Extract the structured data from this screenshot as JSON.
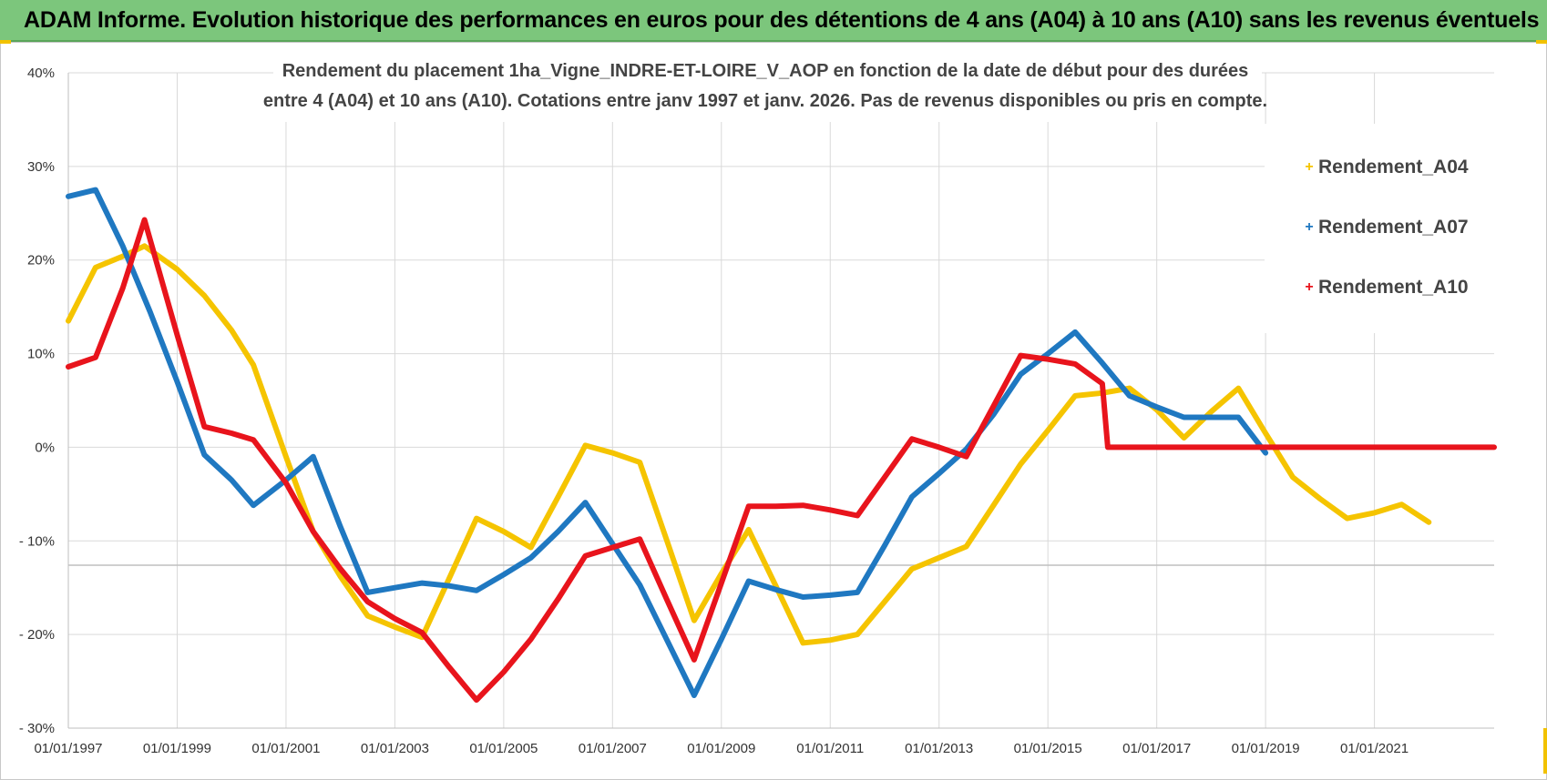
{
  "header": {
    "title": "ADAM Informe. Evolution historique des performances en euros pour des détentions de 4 ans (A04) à 10 ans (A10) sans les revenus éventuels"
  },
  "colors": {
    "banner": "#7cc67c",
    "A04": "#f5c400",
    "A07": "#1f78c1",
    "A10": "#e8141c",
    "grid": "#d9d9d9"
  },
  "chart_data": {
    "type": "line",
    "title_line1": "Rendement du placement 1ha_Vigne_INDRE-ET-LOIRE_V_AOP en fonction de la date de début pour des durées",
    "title_line2": "entre 4 (A04) et 10 ans (A10).  Cotations entre janv 1997 et janv. 2026. Pas de revenus disponibles ou pris en compte.",
    "xlabel": "",
    "ylabel": "",
    "xlim": [
      1997,
      2023.2
    ],
    "ylim": [
      -30,
      40
    ],
    "yticks": [
      40,
      30,
      20,
      10,
      0,
      -10,
      -20,
      -30
    ],
    "ytick_labels": [
      "40%",
      "30%",
      "20%",
      "10%",
      "0%",
      "- 10%",
      "- 20%",
      "- 30%"
    ],
    "xtick_labels": [
      "01/01/1997",
      "01/01/1999",
      "01/01/2001",
      "01/01/2003",
      "01/01/2005",
      "01/01/2007",
      "01/01/2009",
      "01/01/2011",
      "01/01/2013",
      "01/01/2015",
      "01/01/2017",
      "01/01/2019",
      "01/01/2021"
    ],
    "xtick_years": [
      1997,
      1999,
      2001,
      2003,
      2005,
      2007,
      2009,
      2011,
      2013,
      2015,
      2017,
      2019,
      2021
    ],
    "grid": true,
    "legend_position": "top-right",
    "series": [
      {
        "name": "Rendement_A04",
        "x": [
          1997.0,
          1997.5,
          1998.0,
          1998.4,
          1999.0,
          1999.5,
          2000.0,
          2000.4,
          2001.0,
          2001.5,
          2002.0,
          2002.5,
          2003.0,
          2003.5,
          2004.0,
          2004.5,
          2005.0,
          2005.5,
          2006.0,
          2006.5,
          2007.0,
          2007.5,
          2008.0,
          2008.5,
          2009.0,
          2009.5,
          2010.0,
          2010.5,
          2011.0,
          2011.5,
          2012.0,
          2012.5,
          2013.0,
          2013.5,
          2014.0,
          2014.5,
          2015.0,
          2015.5,
          2016.0,
          2016.5,
          2017.0,
          2017.5,
          2018.0,
          2018.5,
          2019.0,
          2019.5,
          2020.0,
          2020.5,
          2021.0,
          2021.5,
          2022.0
        ],
        "values": [
          13.5,
          19.2,
          20.4,
          21.5,
          19.0,
          16.2,
          12.5,
          8.8,
          -1.0,
          -9.0,
          -13.8,
          -18.0,
          -19.2,
          -20.3,
          -14.0,
          -7.6,
          -9.0,
          -10.7,
          -5.3,
          0.2,
          -0.6,
          -1.6,
          -10.0,
          -18.5,
          -13.5,
          -8.8,
          -14.8,
          -20.9,
          -20.6,
          -20.0,
          -16.5,
          -13.0,
          -11.8,
          -10.6,
          -6.2,
          -1.8,
          1.8,
          5.5,
          5.8,
          6.3,
          4.0,
          1.0,
          3.8,
          6.3,
          1.5,
          -3.2,
          -5.5,
          -7.6,
          -7.0,
          -6.1,
          -8.0
        ]
      },
      {
        "name": "Rendement_A07",
        "x": [
          1997.0,
          1997.5,
          1998.0,
          1998.5,
          1999.0,
          1999.5,
          2000.0,
          2000.4,
          2001.0,
          2001.5,
          2002.0,
          2002.5,
          2003.0,
          2003.5,
          2004.0,
          2004.5,
          2005.0,
          2005.5,
          2006.0,
          2006.5,
          2007.0,
          2007.5,
          2008.0,
          2008.5,
          2009.0,
          2009.5,
          2010.0,
          2010.5,
          2011.0,
          2011.5,
          2012.0,
          2012.5,
          2013.0,
          2013.5,
          2014.0,
          2014.5,
          2015.0,
          2015.5,
          2016.0,
          2016.5,
          2017.0,
          2017.5,
          2018.0,
          2018.5,
          2019.0
        ],
        "values": [
          26.8,
          27.5,
          21.5,
          14.5,
          7.0,
          -0.8,
          -3.5,
          -6.2,
          -3.5,
          -1.0,
          -8.5,
          -15.5,
          -15.0,
          -14.5,
          -14.8,
          -15.3,
          -13.6,
          -11.8,
          -9.0,
          -5.9,
          -10.3,
          -14.7,
          -20.6,
          -26.5,
          -20.5,
          -14.3,
          -15.2,
          -16.0,
          -15.8,
          -15.5,
          -10.5,
          -5.3,
          -2.8,
          -0.2,
          3.5,
          7.8,
          10.0,
          12.3,
          9.0,
          5.5,
          4.3,
          3.2,
          3.2,
          3.2,
          -0.6
        ]
      },
      {
        "name": "Rendement_A10",
        "x": [
          1997.0,
          1997.5,
          1998.0,
          1998.4,
          1999.0,
          1999.5,
          2000.0,
          2000.4,
          2001.0,
          2001.5,
          2002.0,
          2002.5,
          2003.0,
          2003.5,
          2004.0,
          2004.5,
          2005.0,
          2005.5,
          2006.0,
          2006.5,
          2007.0,
          2007.5,
          2008.0,
          2008.5,
          2009.0,
          2009.5,
          2010.0,
          2010.5,
          2011.0,
          2011.5,
          2012.0,
          2012.5,
          2013.0,
          2013.5,
          2014.0,
          2014.5,
          2015.0,
          2015.5,
          2016.0,
          2016.1,
          2017.0,
          2018.0,
          2019.0,
          2020.0,
          2021.0,
          2022.0,
          2023.0,
          2023.2
        ],
        "values": [
          8.6,
          9.6,
          17.0,
          24.3,
          12.0,
          2.2,
          1.5,
          0.8,
          -3.8,
          -9.0,
          -13.0,
          -16.5,
          -18.3,
          -19.8,
          -23.5,
          -27.0,
          -24.0,
          -20.5,
          -16.2,
          -11.6,
          -10.7,
          -9.8,
          -16.3,
          -22.7,
          -14.5,
          -6.3,
          -6.3,
          -6.2,
          -6.7,
          -7.3,
          -3.2,
          0.9,
          0.0,
          -1.0,
          4.4,
          9.8,
          9.4,
          8.9,
          6.8,
          0.0,
          0.0,
          0.0,
          0.0,
          0.0,
          0.0,
          0.0,
          0.0,
          0.0
        ]
      }
    ]
  }
}
